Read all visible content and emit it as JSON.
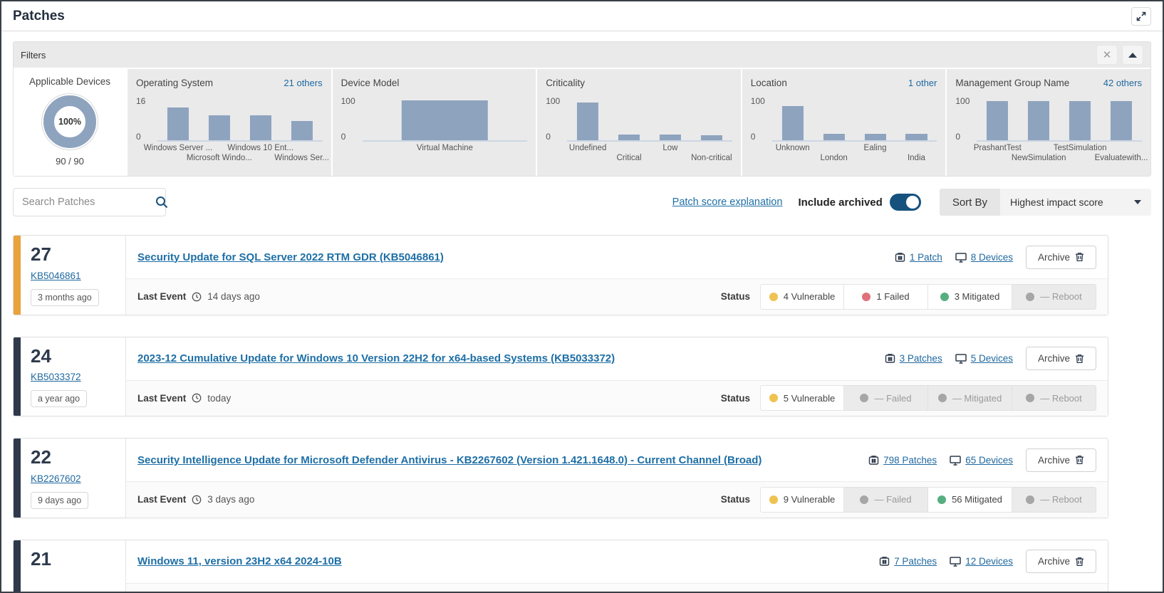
{
  "header": {
    "title": "Patches"
  },
  "filters": {
    "title": "Filters",
    "panels": [
      {
        "type": "donut",
        "title": "Applicable Devices",
        "percent_label": "100%",
        "ratio_label": "90 / 90",
        "value": 100
      },
      {
        "type": "bar",
        "title": "Operating System",
        "others": "21 others",
        "ymax": 16,
        "ymax_label": "16",
        "ybase_label": "0",
        "bars": [
          {
            "label": "Windows Server ...",
            "value": 12
          },
          {
            "label": "Microsoft Windo...",
            "value": 9
          },
          {
            "label": "Windows 10 Ent...",
            "value": 9
          },
          {
            "label": "Windows Ser...",
            "value": 7
          }
        ]
      },
      {
        "type": "bar",
        "title": "Device Model",
        "others": "",
        "ymax": 100,
        "ymax_label": "100",
        "ybase_label": "0",
        "bars": [
          {
            "label": "Virtual Machine",
            "value": 90
          }
        ]
      },
      {
        "type": "bar",
        "title": "Criticality",
        "others": "",
        "ymax": 100,
        "ymax_label": "100",
        "ybase_label": "0",
        "bars": [
          {
            "label": "Undefined",
            "value": 85
          },
          {
            "label": "Critical",
            "value": 13
          },
          {
            "label": "Low",
            "value": 13
          },
          {
            "label": "Non-critical",
            "value": 11
          }
        ]
      },
      {
        "type": "bar",
        "title": "Location",
        "others": "1 other",
        "ymax": 100,
        "ymax_label": "100",
        "ybase_label": "0",
        "bars": [
          {
            "label": "Unknown",
            "value": 78
          },
          {
            "label": "London",
            "value": 14
          },
          {
            "label": "Ealing",
            "value": 14
          },
          {
            "label": "India",
            "value": 14
          }
        ]
      },
      {
        "type": "bar",
        "title": "Management Group Name",
        "others": "42 others",
        "ymax": 100,
        "ymax_label": "100",
        "ybase_label": "0",
        "bars": [
          {
            "label": "PrashantTest",
            "value": 88
          },
          {
            "label": "NewSimulation",
            "value": 88
          },
          {
            "label": "TestSimulation",
            "value": 88
          },
          {
            "label": "Evaluatewith...",
            "value": 88
          }
        ]
      }
    ]
  },
  "toolbar": {
    "search_placeholder": "Search Patches",
    "patch_score_link": "Patch score explanation",
    "include_archived_label": "Include archived",
    "archived_on": true,
    "sort_by_label": "Sort By",
    "sort_value": "Highest impact score"
  },
  "colors": {
    "bar": "#8EA3BE",
    "vulnerable": "#EFC351",
    "failed": "#E0707B",
    "mitigated": "#57AE7F",
    "inactive_dot": "#A6A6A6",
    "stripe_amber": "#E9A23C",
    "stripe_navy": "#2E3A4C",
    "link_blue": "#1E6FA6"
  },
  "patches": [
    {
      "score": "27",
      "stripe": "#E9A23C",
      "kb": "KB5046861",
      "age": "3 months ago",
      "title": "Security Update for SQL Server 2022 RTM GDR (KB5046861)",
      "patch_count": "1 Patch",
      "device_count": "8 Devices",
      "archive_label": "Archive",
      "last_event_label": "Last Event",
      "last_event": "14 days ago",
      "status_label": "Status",
      "statuses": [
        {
          "label": "4 Vulnerable",
          "color": "#EFC351",
          "active": true
        },
        {
          "label": "1 Failed",
          "color": "#E0707B",
          "active": true
        },
        {
          "label": "3 Mitigated",
          "color": "#57AE7F",
          "active": true
        },
        {
          "label": "— Reboot",
          "color": "#A6A6A6",
          "active": false
        }
      ]
    },
    {
      "score": "24",
      "stripe": "#2E3A4C",
      "kb": "KB5033372",
      "age": "a year ago",
      "title": "2023-12 Cumulative Update for Windows 10 Version 22H2 for x64-based Systems (KB5033372)",
      "patch_count": "3 Patches",
      "device_count": "5 Devices",
      "archive_label": "Archive",
      "last_event_label": "Last Event",
      "last_event": "today",
      "status_label": "Status",
      "statuses": [
        {
          "label": "5 Vulnerable",
          "color": "#EFC351",
          "active": true
        },
        {
          "label": "— Failed",
          "color": "#A6A6A6",
          "active": false
        },
        {
          "label": "— Mitigated",
          "color": "#A6A6A6",
          "active": false
        },
        {
          "label": "— Reboot",
          "color": "#A6A6A6",
          "active": false
        }
      ]
    },
    {
      "score": "22",
      "stripe": "#2E3A4C",
      "kb": "KB2267602",
      "age": "9 days ago",
      "title": "Security Intelligence Update for Microsoft Defender Antivirus - KB2267602 (Version 1.421.1648.0) - Current Channel (Broad)",
      "patch_count": "798 Patches",
      "device_count": "65 Devices",
      "archive_label": "Archive",
      "last_event_label": "Last Event",
      "last_event": "3 days ago",
      "status_label": "Status",
      "statuses": [
        {
          "label": "9 Vulnerable",
          "color": "#EFC351",
          "active": true
        },
        {
          "label": "— Failed",
          "color": "#A6A6A6",
          "active": false
        },
        {
          "label": "56 Mitigated",
          "color": "#57AE7F",
          "active": true
        },
        {
          "label": "— Reboot",
          "color": "#A6A6A6",
          "active": false
        }
      ]
    },
    {
      "score": "21",
      "stripe": "#2E3A4C",
      "title": "Windows 11, version 23H2 x64 2024-10B",
      "patch_count": "7 Patches",
      "device_count": "12 Devices",
      "archive_label": "Archive"
    }
  ]
}
